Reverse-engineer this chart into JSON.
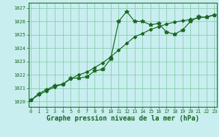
{
  "title": "Graphe pression niveau de la mer (hPa)",
  "background_color": "#c8eef0",
  "grid_color": "#88ccaa",
  "line_color": "#1a6620",
  "x_ticks": [
    0,
    1,
    2,
    3,
    4,
    5,
    6,
    7,
    8,
    9,
    10,
    11,
    12,
    13,
    14,
    15,
    16,
    17,
    18,
    19,
    20,
    21,
    22,
    23
  ],
  "y_ticks": [
    1020,
    1021,
    1022,
    1023,
    1024,
    1025,
    1026,
    1027
  ],
  "ylim": [
    1019.6,
    1027.4
  ],
  "xlim": [
    -0.3,
    23.3
  ],
  "series1_x": [
    0,
    1,
    2,
    3,
    4,
    5,
    6,
    7,
    8,
    9,
    10,
    11,
    12,
    13,
    14,
    15,
    16,
    17,
    18,
    19,
    20,
    21,
    22,
    23
  ],
  "series1_y": [
    1020.1,
    1020.6,
    1020.9,
    1021.2,
    1021.3,
    1021.75,
    1021.75,
    1021.85,
    1022.3,
    1022.4,
    1023.2,
    1026.0,
    1026.75,
    1026.0,
    1026.0,
    1025.75,
    1025.85,
    1025.2,
    1025.05,
    1025.35,
    1026.0,
    1026.35,
    1026.3,
    1026.5
  ],
  "series2_x": [
    0,
    1,
    2,
    3,
    4,
    5,
    6,
    7,
    8,
    9,
    10,
    11,
    12,
    13,
    14,
    15,
    16,
    17,
    18,
    19,
    20,
    21,
    22,
    23
  ],
  "series2_y": [
    1020.1,
    1020.5,
    1020.8,
    1021.1,
    1021.3,
    1021.7,
    1022.0,
    1022.2,
    1022.55,
    1022.9,
    1023.35,
    1023.85,
    1024.35,
    1024.85,
    1025.1,
    1025.4,
    1025.6,
    1025.8,
    1025.95,
    1026.05,
    1026.15,
    1026.25,
    1026.35,
    1026.5
  ]
}
